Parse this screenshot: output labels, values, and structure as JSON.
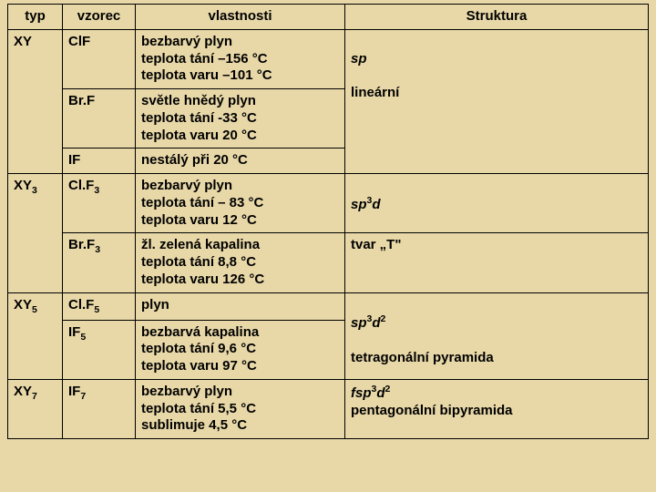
{
  "headers": {
    "typ": "typ",
    "vzorec": "vzorec",
    "vlastnosti": "vlastnosti",
    "struktura": "Struktura"
  },
  "colors": {
    "background": "#e8d8a8",
    "border": "#000000",
    "text": "#000000"
  },
  "rows": [
    {
      "typ": "XY",
      "typRowspan": 3,
      "vzorec": "ClF",
      "vlastnosti": "bezbarvý plyn\nteplota tání –156 °C\nteplota varu –101 °C",
      "strukturaHtml": "",
      "strukturaRowspan": 1
    },
    {
      "vzorec": "Br.F",
      "vlastnosti": "světle hnědý plyn\nteplota tání  -33 °C\nteplota varu 20 °C",
      "strukturaHtml": "<span class=\"struct\">sp</span><br><br><span class=\"normal\">lineární</span>",
      "strukturaRowspan": 2,
      "strukturaContinuesPrev": false
    },
    {
      "vzorec": "IF",
      "vlastnosti": "nestálý při 20 °C"
    },
    {
      "typ": "XY",
      "typSub": "3",
      "typRowspan": 2,
      "vzorec": "Cl.F",
      "vzorecSub": "3",
      "vlastnosti": "bezbarvý plyn\nteplota tání – 83 °C\nteplota varu 12 °C",
      "strukturaHtml": "<br><span class=\"struct\">sp<sup>3</sup>d</span>",
      "strukturaRowspan": 1
    },
    {
      "vzorec": "Br.F",
      "vzorecSub": "3",
      "vlastnosti": "žl. zelená kapalina\nteplota tání 8,8 °C\nteplota varu 126 °C",
      "strukturaHtml": "<span class=\"normal\">tvar „T\"</span>",
      "strukturaRowspan": 1
    },
    {
      "typ": "XY",
      "typSub": "5",
      "typRowspan": 2,
      "vzorec": "Cl.F",
      "vzorecSub": "5",
      "vlastnosti": "plyn",
      "strukturaHtml": "",
      "strukturaRowspan": 1
    },
    {
      "vzorec": "IF",
      "vzorecSub": "5",
      "vlastnosti": "bezbarvá kapalina\nteplota tání 9,6 °C\nteplota varu 97 °C",
      "strukturaHtml": "<span class=\"struct\">sp<sup>3</sup>d<sup>2</sup></span><br><br><span class=\"normal\">tetragonální pyramida</span>",
      "strukturaRowspan": 1
    },
    {
      "typ": "XY",
      "typSub": "7",
      "typRowspan": 1,
      "vzorec": "IF",
      "vzorecSub": "7",
      "vlastnosti": "bezbarvý plyn\nteplota tání 5,5 °C\nsublimuje  4,5 °C",
      "strukturaHtml": "<span class=\"struct\">fsp<sup>3</sup>d<sup>2</sup></span><br><span class=\"normal\">pentagonální bipyramida</span>",
      "strukturaRowspan": 1
    }
  ],
  "structureCells": [
    {
      "startRow": 0,
      "rowspan": 3,
      "html": "<br><span class=\"struct\">sp</span><br><br><span class=\"normal\"><b>lineární</b></span>"
    },
    {
      "startRow": 3,
      "rowspan": 1,
      "html": "<br><span class=\"struct\">sp<sup>3</sup>d</span>"
    },
    {
      "startRow": 4,
      "rowspan": 1,
      "html": "<span class=\"normal\"><b>tvar „T\"</b></span>"
    },
    {
      "startRow": 5,
      "rowspan": 2,
      "html": "<br><span class=\"struct\">sp<sup>3</sup>d<sup>2</sup></span><br><br><span class=\"normal\"><b>tetragonální pyramida</b></span>"
    },
    {
      "startRow": 7,
      "rowspan": 1,
      "html": "<span class=\"struct\">fsp<sup>3</sup>d<sup>2</sup></span><br><span class=\"normal\"><b>pentagonální bipyramida</b></span>"
    }
  ],
  "typCells": [
    {
      "startRow": 0,
      "rowspan": 3,
      "text": "XY",
      "sub": ""
    },
    {
      "startRow": 3,
      "rowspan": 2,
      "text": "XY",
      "sub": "3"
    },
    {
      "startRow": 5,
      "rowspan": 2,
      "text": "XY",
      "sub": "5"
    },
    {
      "startRow": 7,
      "rowspan": 1,
      "text": "XY",
      "sub": "7"
    }
  ]
}
